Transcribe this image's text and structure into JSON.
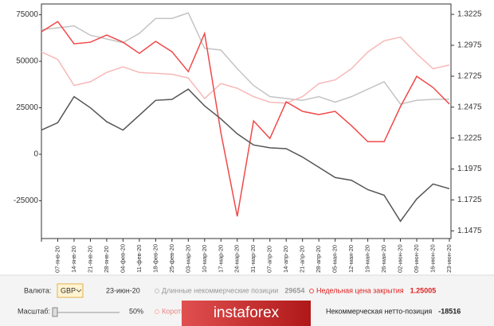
{
  "chart_data": {
    "type": "line",
    "categories": [
      null,
      "07-янв-20",
      "14-янв-20",
      "21-янв-20",
      "28-янв-20",
      "04-фев-20",
      "11-фев-20",
      "18-фев-20",
      "25-фев-20",
      "03-мар-20",
      "10-мар-20",
      "17-мар-20",
      "24-мар-20",
      "31-мар-20",
      "07-апр-20",
      "14-апр-20",
      "21-апр-20",
      "28-апр-20",
      "05-мая-20",
      "12-мая-20",
      "19-мая-20",
      "26-мая-20",
      "02-июн-20",
      "09-июн-20",
      "16-июн-20",
      "23-июн-20"
    ],
    "series": [
      {
        "name": "Длинные некоммерческие позиции",
        "color": "#c4c4c4",
        "values": [
          67000,
          68000,
          69000,
          64000,
          62000,
          60000,
          65000,
          73000,
          73000,
          76000,
          57000,
          56000,
          46000,
          37000,
          31000,
          30000,
          29000,
          31000,
          28000,
          31000,
          35000,
          39000,
          27000,
          29000,
          29500,
          29654
        ]
      },
      {
        "name": "Короткие",
        "color": "#f7b9b9",
        "values": [
          55000,
          51000,
          37000,
          39000,
          44000,
          47000,
          44000,
          43500,
          43000,
          41000,
          30000,
          38000,
          35500,
          31000,
          28000,
          27500,
          31000,
          38000,
          40000,
          46000,
          55000,
          61000,
          63000,
          54000,
          46000,
          48000
        ]
      },
      {
        "name": "Недельная цена закрытия",
        "color": "#f04848",
        "axis": "y2",
        "values": [
          1.3084,
          1.3167,
          1.2987,
          1.3,
          1.3058,
          1.3,
          1.291,
          1.3007,
          1.2923,
          1.2762,
          1.3071,
          1.2267,
          1.1592,
          1.2364,
          1.2222,
          1.2518,
          1.2441,
          1.2415,
          1.2441,
          1.2325,
          1.2196,
          1.2196,
          1.2479,
          1.2724,
          1.2634,
          1.25005
        ]
      },
      {
        "name": "Некоммерческая нетто-позиция",
        "color": "#555555",
        "values": [
          13000,
          17000,
          31000,
          25000,
          17500,
          13000,
          21000,
          29000,
          29500,
          35000,
          26000,
          19000,
          11000,
          5000,
          3500,
          3000,
          -1500,
          -7000,
          -12500,
          -14000,
          -19000,
          -22000,
          -36000,
          -24000,
          -16000,
          -18516
        ]
      }
    ],
    "ylim": [
      -45300,
      80800
    ],
    "yticks": [
      75000,
      50000,
      25000,
      0,
      -25000
    ],
    "y2lim": [
      1.1413,
      1.3309
    ],
    "y2ticks": [
      1.3225,
      1.2975,
      1.2725,
      1.2475,
      1.2225,
      1.1975,
      1.1725,
      1.1475
    ]
  },
  "ui": {
    "currency_label": "Валюта:",
    "currency": "GBP",
    "date": "23-июн-20",
    "scale_label": "Масштаб:",
    "scale": "50%",
    "logo": "instaforex"
  }
}
